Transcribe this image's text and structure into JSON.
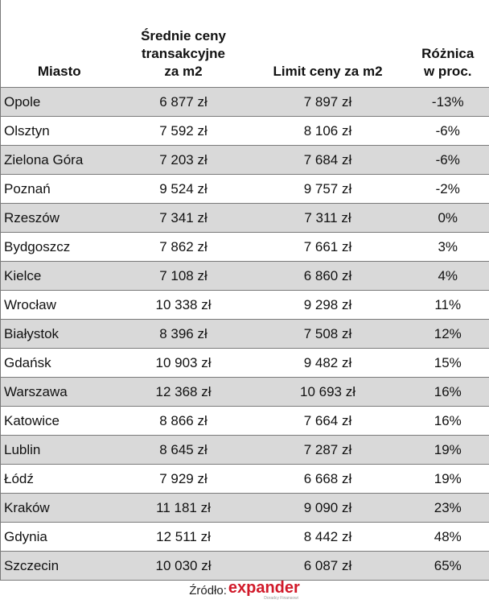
{
  "chart_data": {
    "type": "table",
    "columns": [
      "Miasto",
      "Średnie ceny transakcyjne za m2",
      "Limit ceny za m2",
      "Różnica w proc."
    ],
    "rows": [
      [
        "Opole",
        "6 877 zł",
        "7 897 zł",
        "-13%"
      ],
      [
        "Olsztyn",
        "7 592 zł",
        "8 106 zł",
        "-6%"
      ],
      [
        "Zielona Góra",
        "7 203 zł",
        "7 684 zł",
        "-6%"
      ],
      [
        "Poznań",
        "9 524 zł",
        "9 757 zł",
        "-2%"
      ],
      [
        "Rzeszów",
        "7 341 zł",
        "7 311 zł",
        "0%"
      ],
      [
        "Bydgoszcz",
        "7 862 zł",
        "7 661 zł",
        "3%"
      ],
      [
        "Kielce",
        "7 108 zł",
        "6 860 zł",
        "4%"
      ],
      [
        "Wrocław",
        "10 338 zł",
        "9 298 zł",
        "11%"
      ],
      [
        "Białystok",
        "8 396 zł",
        "7 508 zł",
        "12%"
      ],
      [
        "Gdańsk",
        "10 903 zł",
        "9 482 zł",
        "15%"
      ],
      [
        "Warszawa",
        "12 368 zł",
        "10 693 zł",
        "16%"
      ],
      [
        "Katowice",
        "8 866 zł",
        "7 664 zł",
        "16%"
      ],
      [
        "Lublin",
        "8 645 zł",
        "7 287 zł",
        "19%"
      ],
      [
        "Łódź",
        "7 929 zł",
        "6 668 zł",
        "19%"
      ],
      [
        "Kraków",
        "11 181 zł",
        "9 090 zł",
        "23%"
      ],
      [
        "Gdynia",
        "12 511 zł",
        "8 442 zł",
        "48%"
      ],
      [
        "Szczecin",
        "10 030 zł",
        "6 087 zł",
        "65%"
      ]
    ]
  },
  "header": {
    "city": "Miasto",
    "avg_price_lines": [
      "Średnie ceny",
      "transakcyjne",
      "za m2"
    ],
    "limit": "Limit ceny za m2",
    "diff_lines": [
      "Różnica",
      "w proc."
    ]
  },
  "footer": {
    "source_label": "Źródło:",
    "logo_text": "expander",
    "logo_tagline": "Doradcy Finansowi"
  },
  "colors": {
    "row_stripe": "#d9d9d9",
    "logo_red": "#d11a2a"
  }
}
